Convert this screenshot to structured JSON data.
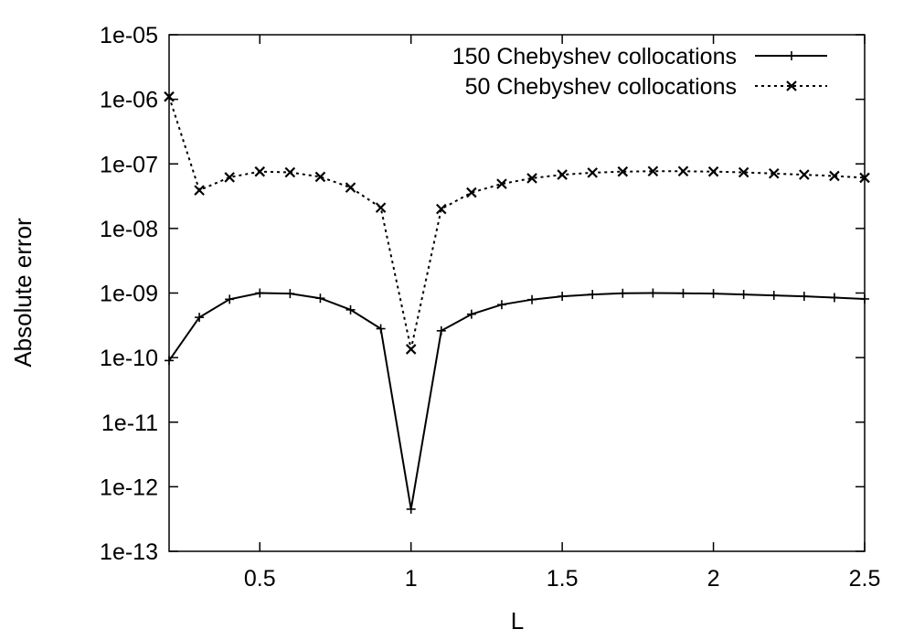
{
  "chart_data": {
    "type": "line",
    "xlabel": "L",
    "ylabel": "Absolute error",
    "xlim": [
      0.2,
      2.5
    ],
    "ylim": [
      1e-13,
      1e-05
    ],
    "y_scale": "log",
    "grid": false,
    "legend_position": "top-right",
    "x_ticks": [
      0.5,
      1,
      1.5,
      2,
      2.5
    ],
    "x_tick_labels": [
      "0.5",
      "1",
      "1.5",
      "2",
      "2.5"
    ],
    "y_ticks": [
      1e-13,
      1e-12,
      1e-11,
      1e-10,
      1e-09,
      1e-08,
      1e-07,
      1e-06,
      1e-05
    ],
    "y_tick_labels": [
      "1e-13",
      "1e-12",
      "1e-11",
      "1e-10",
      "1e-09",
      "1e-08",
      "1e-07",
      "1e-06",
      "1e-05"
    ],
    "series": [
      {
        "name": "150 Chebyshev collocations",
        "line_style": "solid",
        "marker": "plus",
        "color": "#000000",
        "x": [
          0.2,
          0.3,
          0.4,
          0.5,
          0.6,
          0.7,
          0.8,
          0.9,
          1.0,
          1.1,
          1.2,
          1.3,
          1.4,
          1.5,
          1.6,
          1.7,
          1.8,
          1.9,
          2.0,
          2.1,
          2.2,
          2.3,
          2.4,
          2.5
        ],
        "y": [
          9e-11,
          4.2e-10,
          8e-10,
          1e-09,
          9.8e-10,
          8.3e-10,
          5.5e-10,
          2.8e-10,
          4.5e-13,
          2.6e-10,
          4.7e-10,
          6.6e-10,
          7.9e-10,
          8.9e-10,
          9.5e-10,
          9.9e-10,
          1e-09,
          9.9e-10,
          9.8e-10,
          9.5e-10,
          9.2e-10,
          8.9e-10,
          8.5e-10,
          8.1e-10
        ]
      },
      {
        "name": "50 Chebyshev collocations",
        "line_style": "dotted",
        "marker": "cross",
        "color": "#000000",
        "x": [
          0.2,
          0.3,
          0.4,
          0.5,
          0.6,
          0.7,
          0.8,
          0.9,
          1.0,
          1.1,
          1.2,
          1.3,
          1.4,
          1.5,
          1.6,
          1.7,
          1.8,
          1.9,
          2.0,
          2.1,
          2.2,
          2.3,
          2.4,
          2.5
        ],
        "y": [
          1.1e-06,
          3.9e-08,
          6.2e-08,
          7.6e-08,
          7.4e-08,
          6.3e-08,
          4.3e-08,
          2.1e-08,
          1.35e-10,
          2e-08,
          3.6e-08,
          4.9e-08,
          6e-08,
          6.8e-08,
          7.3e-08,
          7.6e-08,
          7.7e-08,
          7.7e-08,
          7.6e-08,
          7.4e-08,
          7.1e-08,
          6.8e-08,
          6.5e-08,
          6.1e-08
        ]
      }
    ]
  }
}
